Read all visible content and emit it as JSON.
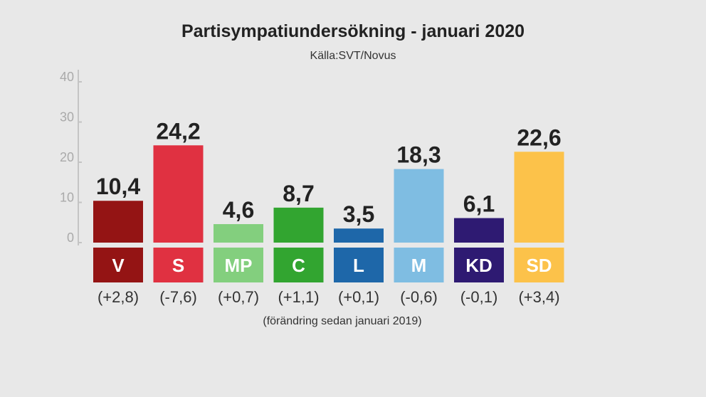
{
  "title": "Partisympatiundersökning - januari 2020",
  "subtitle": "Källa:SVT/Novus",
  "footnote": "(förändring sedan januari 2019)",
  "chart_data": {
    "type": "bar",
    "title": "Partisympatiundersökning - januari 2020",
    "subtitle": "Källa:SVT/Novus",
    "categories": [
      "V",
      "S",
      "MP",
      "C",
      "L",
      "M",
      "KD",
      "SD"
    ],
    "values": [
      10.4,
      24.2,
      4.6,
      8.7,
      3.5,
      18.3,
      6.1,
      22.6
    ],
    "value_labels": [
      "10,4",
      "24,2",
      "4,6",
      "8,7",
      "3,5",
      "18,3",
      "6,1",
      "22,6"
    ],
    "changes": [
      "(+2,8)",
      "(-7,6)",
      "(+0,7)",
      "(+1,1)",
      "(+0,1)",
      "(-0,6)",
      "(-0,1)",
      "(+3,4)"
    ],
    "colors": [
      "#941414",
      "#e03141",
      "#83cf7e",
      "#32a530",
      "#1e67a9",
      "#7fbde2",
      "#2e1a72",
      "#fcc24a"
    ],
    "yticks": [
      "0",
      "10",
      "20",
      "30",
      "40"
    ],
    "ylim": [
      0,
      40
    ],
    "xlabel": "",
    "ylabel": "",
    "grid": false,
    "legend": "none"
  }
}
